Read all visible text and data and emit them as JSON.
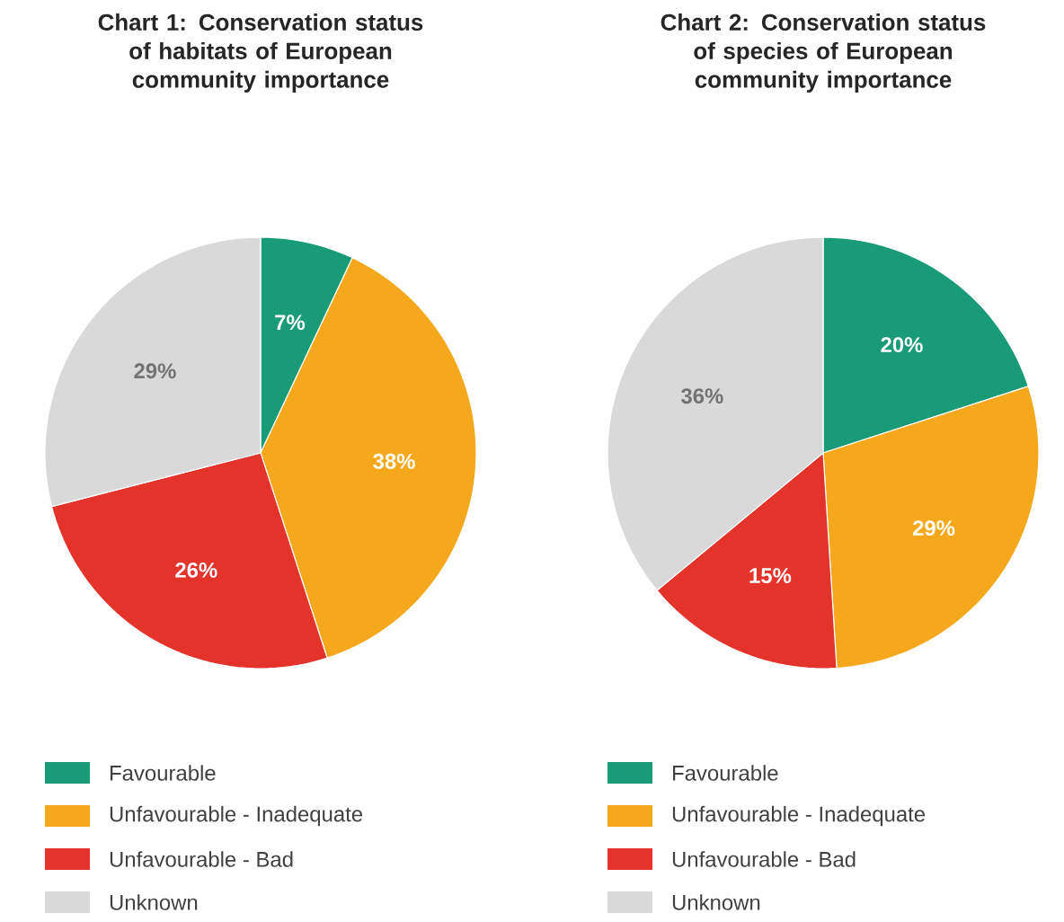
{
  "chart_data": [
    {
      "type": "pie",
      "title": "Chart 1: Conservation status of habitats of European community importance",
      "categories": [
        "Favourable",
        "Unfavourable - Inadequate",
        "Unfavourable - Bad",
        "Unknown"
      ],
      "values": [
        7,
        38,
        26,
        29
      ],
      "value_labels": [
        "7%",
        "38%",
        "26%",
        "29%"
      ],
      "colors": [
        "#1a9b77",
        "#f5a81c",
        "#e3332b",
        "#d9d9d9"
      ],
      "legend": "bottom"
    },
    {
      "type": "pie",
      "title": "Chart 2: Conservation status of species of European community importance",
      "categories": [
        "Favourable",
        "Unfavourable - Inadequate",
        "Unfavourable - Bad",
        "Unknown"
      ],
      "values": [
        20,
        29,
        15,
        36
      ],
      "value_labels": [
        "20%",
        "29%",
        "15%",
        "36%"
      ],
      "colors": [
        "#1a9b77",
        "#f5a81c",
        "#e3332b",
        "#d9d9d9"
      ],
      "legend": "bottom"
    }
  ]
}
